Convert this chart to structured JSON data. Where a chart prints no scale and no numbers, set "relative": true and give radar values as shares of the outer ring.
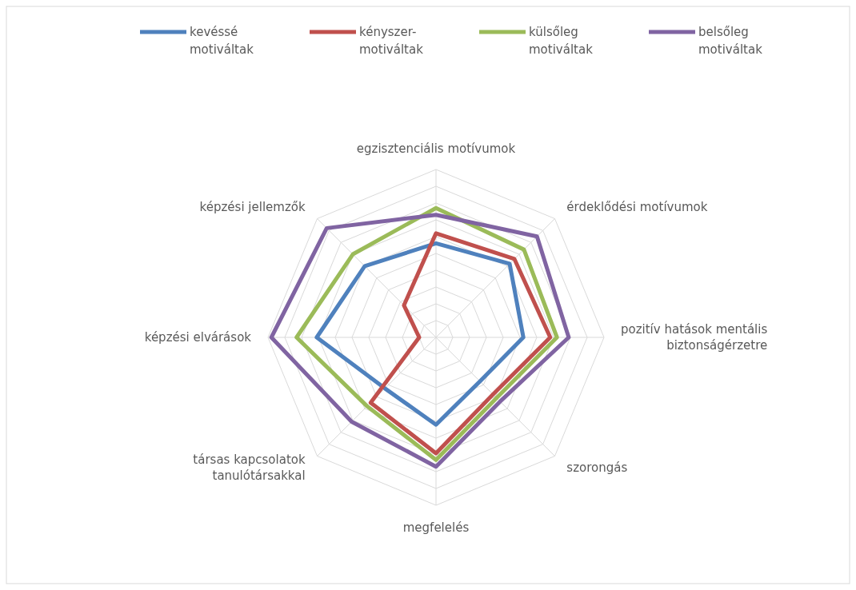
{
  "chart_data": {
    "type": "radar",
    "relative": true,
    "grid": true,
    "legend": "top",
    "line_style": "solid",
    "marker": "none",
    "categories": [
      "egzisztenciális motívumok",
      "érdeklődési motívumok",
      "pozitív hatások mentális biztonságérzetre",
      "szorongás",
      "megfelelés",
      "társas kapcsolatok tanulótársakkal",
      "képzési elvárások",
      "képzési jellemzők"
    ],
    "series": [
      {
        "name": "kevéssé motiváltak",
        "color": "#4f81bd",
        "values": [
          0.56,
          0.62,
          0.52,
          0.37,
          0.52,
          0.43,
          0.71,
          0.6
        ]
      },
      {
        "name": "kényszer-motiváltak",
        "color": "#c0504d",
        "values": [
          0.62,
          0.66,
          0.68,
          0.48,
          0.69,
          0.55,
          0.1,
          0.27
        ]
      },
      {
        "name": "külsőleg motiváltak",
        "color": "#9bbb59",
        "values": [
          0.77,
          0.74,
          0.72,
          0.51,
          0.73,
          0.58,
          0.83,
          0.7
        ]
      },
      {
        "name": "belsőleg motiváltak",
        "color": "#8064a2",
        "values": [
          0.73,
          0.85,
          0.79,
          0.54,
          0.77,
          0.71,
          0.98,
          0.92
        ]
      }
    ]
  }
}
